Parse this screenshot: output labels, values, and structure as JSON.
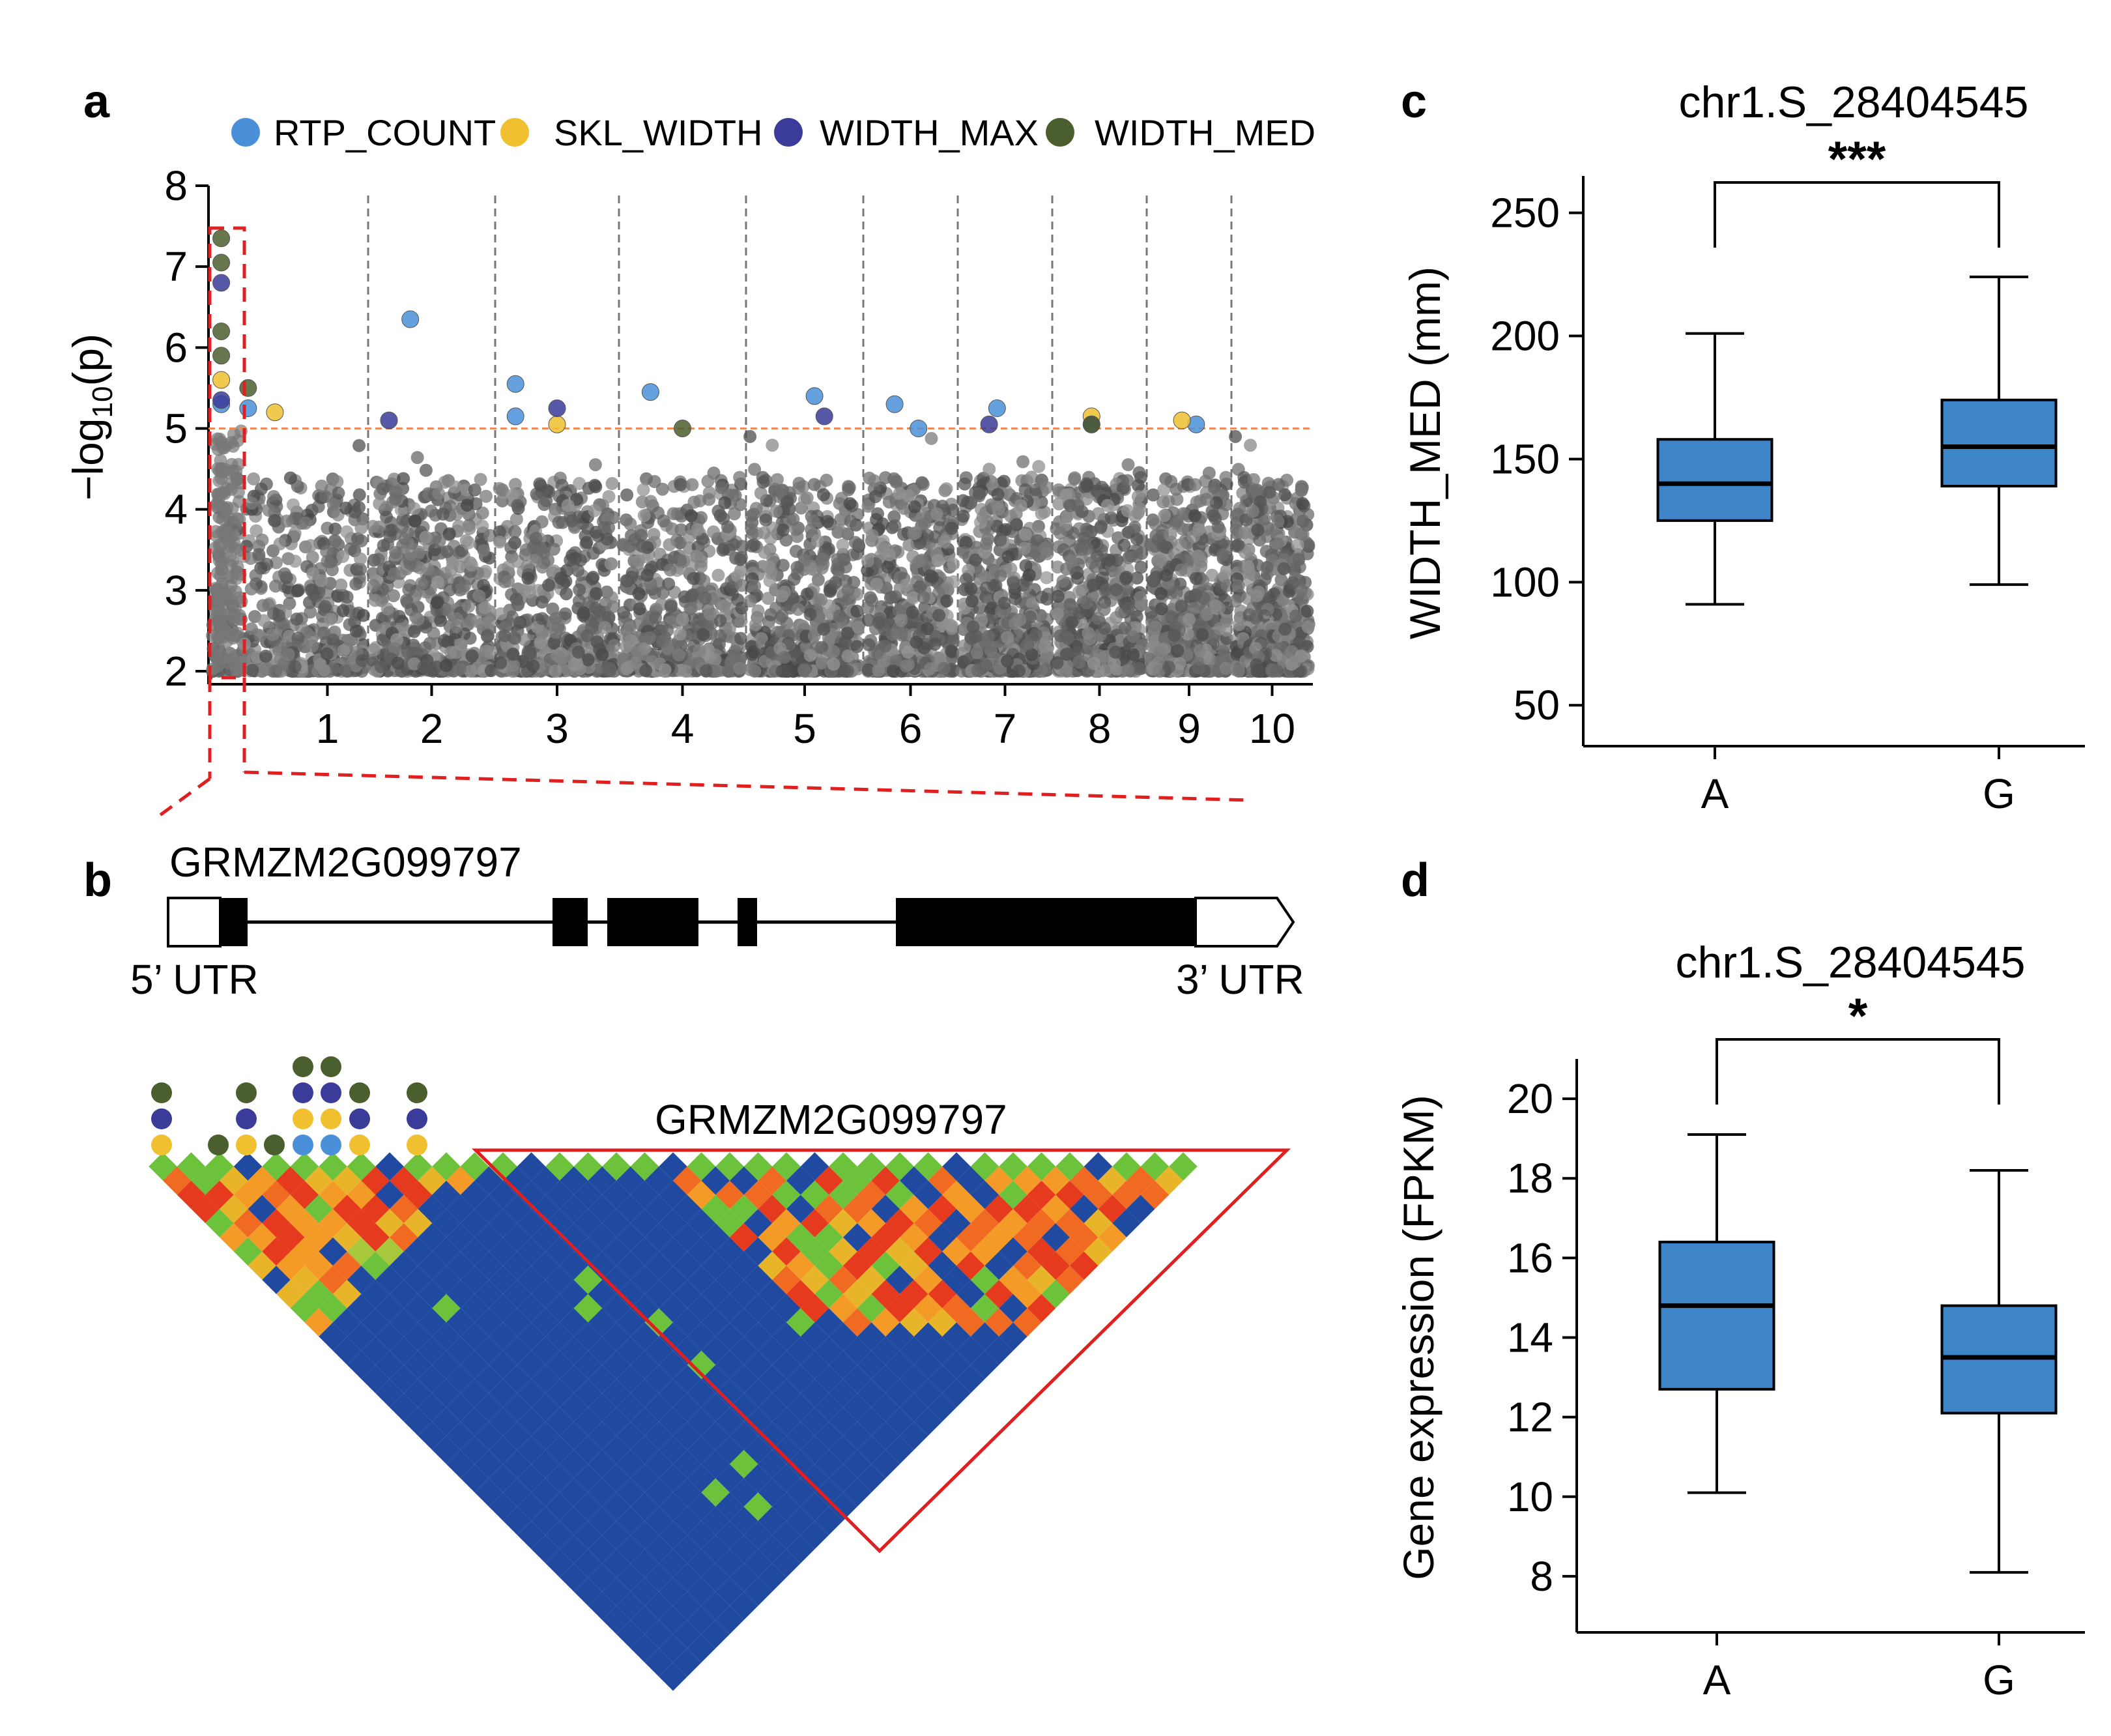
{
  "colors": {
    "RTP_COUNT": "#4a90d9",
    "SKL_WIDTH": "#f0c030",
    "WIDTH_MAX": "#3b3b9a",
    "WIDTH_MED": "#4b5e2e",
    "threshold": "#f08a50",
    "box": "#3d85c6",
    "highlight": "#e02020",
    "ld_blue": "#1f4aa0"
  },
  "panels": {
    "a": {
      "label": "a"
    },
    "b": {
      "label": "b"
    },
    "c": {
      "label": "c"
    },
    "d": {
      "label": "d"
    }
  },
  "legend": [
    {
      "key": "RTP_COUNT",
      "label": "RTP_COUNT"
    },
    {
      "key": "SKL_WIDTH",
      "label": "SKL_WIDTH"
    },
    {
      "key": "WIDTH_MAX",
      "label": "WIDTH_MAX"
    },
    {
      "key": "WIDTH_MED",
      "label": "WIDTH_MED"
    }
  ],
  "gene": {
    "name": "GRMZM2G099797",
    "utr5": "5’ UTR",
    "utr3": "3’ UTR",
    "ld_label": "GRMZM2G099797"
  },
  "chart_data": [
    {
      "type": "scatter",
      "panel": "a",
      "title": "",
      "ylabel": "-log10(p)",
      "ylim": [
        2,
        8
      ],
      "yticks": [
        2,
        3,
        4,
        5,
        6,
        7,
        8
      ],
      "chromosomes": [
        "1",
        "2",
        "3",
        "4",
        "5",
        "6",
        "7",
        "8",
        "9",
        "10"
      ],
      "threshold": 5,
      "series": [
        {
          "name": "RTP_COUNT",
          "points": [
            [
              1.2,
              5.25
            ],
            [
              2.3,
              6.35
            ],
            [
              3.1,
              5.55
            ],
            [
              3.1,
              5.15
            ],
            [
              4.2,
              5.45
            ],
            [
              5.6,
              5.4
            ],
            [
              6.3,
              5.3
            ],
            [
              6.6,
              5.0
            ],
            [
              7.4,
              5.25
            ],
            [
              9.6,
              5.05
            ],
            [
              1.0,
              5.3
            ]
          ]
        },
        {
          "name": "SKL_WIDTH",
          "points": [
            [
              1.0,
              5.6
            ],
            [
              1.4,
              5.2
            ],
            [
              3.5,
              5.05
            ],
            [
              8.4,
              5.15
            ],
            [
              9.4,
              5.1
            ]
          ]
        },
        {
          "name": "WIDTH_MAX",
          "points": [
            [
              1.0,
              6.8
            ],
            [
              1.0,
              5.35
            ],
            [
              2.1,
              5.1
            ],
            [
              3.5,
              5.25
            ],
            [
              5.7,
              5.15
            ],
            [
              7.3,
              5.05
            ],
            [
              8.4,
              5.05
            ]
          ]
        },
        {
          "name": "WIDTH_MED",
          "points": [
            [
              1.0,
              7.35
            ],
            [
              1.0,
              7.05
            ],
            [
              1.0,
              6.2
            ],
            [
              1.0,
              5.9
            ],
            [
              1.2,
              5.5
            ],
            [
              4.5,
              5.0
            ],
            [
              8.4,
              5.05
            ]
          ]
        }
      ]
    },
    {
      "type": "box",
      "panel": "c",
      "title": "chr1.S_28404545",
      "ylabel": "WIDTH_MED (mm)",
      "ylim": [
        40,
        265
      ],
      "yticks": [
        50,
        100,
        150,
        200,
        250
      ],
      "categories": [
        "A",
        "G"
      ],
      "boxes": [
        {
          "min": 91,
          "q1": 125,
          "median": 140,
          "q3": 158,
          "max": 201
        },
        {
          "min": 99,
          "q1": 139,
          "median": 155,
          "q3": 174,
          "max": 224
        }
      ],
      "significance": "***"
    },
    {
      "type": "box",
      "panel": "d",
      "title": "chr1.S_28404545",
      "ylabel": "Gene expression (FPKM)",
      "ylim": [
        7,
        21
      ],
      "yticks": [
        8,
        10,
        12,
        14,
        16,
        18,
        20
      ],
      "categories": [
        "A",
        "G"
      ],
      "boxes": [
        {
          "min": 10.1,
          "q1": 12.7,
          "median": 14.8,
          "q3": 16.4,
          "max": 19.1
        },
        {
          "min": 8.1,
          "q1": 12.1,
          "median": 13.5,
          "q3": 14.8,
          "max": 18.2
        }
      ],
      "significance": "*"
    }
  ]
}
